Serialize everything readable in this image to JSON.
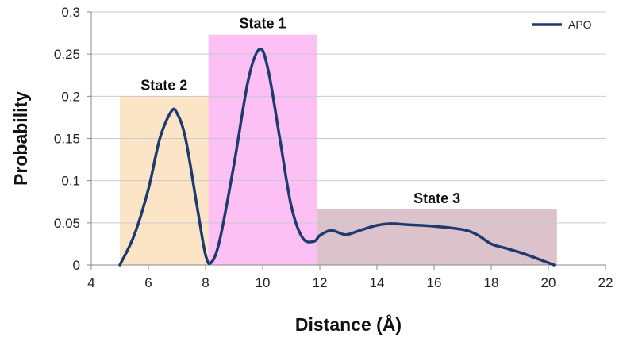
{
  "chart_data": {
    "type": "line",
    "xlabel": "Distance (Å)",
    "ylabel": "Probability",
    "xlim": [
      4,
      22
    ],
    "ylim": [
      0,
      0.3
    ],
    "x_ticks": [
      "4",
      "6",
      "8",
      "10",
      "12",
      "14",
      "16",
      "18",
      "20",
      "22"
    ],
    "y_ticks": [
      "0",
      "0.05",
      "0.1",
      "0.15",
      "0.2",
      "0.25",
      "0.3"
    ],
    "grid": "horizontal",
    "legend_position": "top-right",
    "series": [
      {
        "name": "APO",
        "color": "#1f3a6e",
        "x": [
          5.0,
          5.5,
          6.0,
          6.4,
          6.8,
          7.0,
          7.3,
          7.7,
          8.0,
          8.2,
          8.5,
          9.0,
          9.5,
          9.9,
          10.2,
          10.6,
          11.0,
          11.4,
          11.8,
          12.0,
          12.4,
          12.9,
          13.4,
          14.0,
          14.5,
          15.0,
          16.0,
          17.0,
          17.5,
          18.0,
          18.5,
          19.0,
          19.5,
          20.2
        ],
        "y": [
          0.0,
          0.035,
          0.09,
          0.15,
          0.182,
          0.18,
          0.15,
          0.07,
          0.012,
          0.003,
          0.03,
          0.12,
          0.22,
          0.256,
          0.23,
          0.15,
          0.07,
          0.032,
          0.028,
          0.035,
          0.041,
          0.036,
          0.041,
          0.047,
          0.049,
          0.048,
          0.046,
          0.042,
          0.036,
          0.025,
          0.02,
          0.015,
          0.009,
          0.0
        ]
      }
    ],
    "regions": [
      {
        "label": "State 2",
        "x0": 5.0,
        "x1": 8.1,
        "y_top": 0.2,
        "fill": "#fce5c6",
        "line_color": "#3c5062"
      },
      {
        "label": "State 1",
        "x0": 8.1,
        "x1": 11.9,
        "y_top": 0.273,
        "fill": "#fdc0f5",
        "line_color": "#4a3a8c"
      },
      {
        "label": "State 3",
        "x0": 11.9,
        "x1": 20.3,
        "y_top": 0.066,
        "fill": "#dcc2cb",
        "line_color": "#4a3a8c"
      }
    ]
  }
}
